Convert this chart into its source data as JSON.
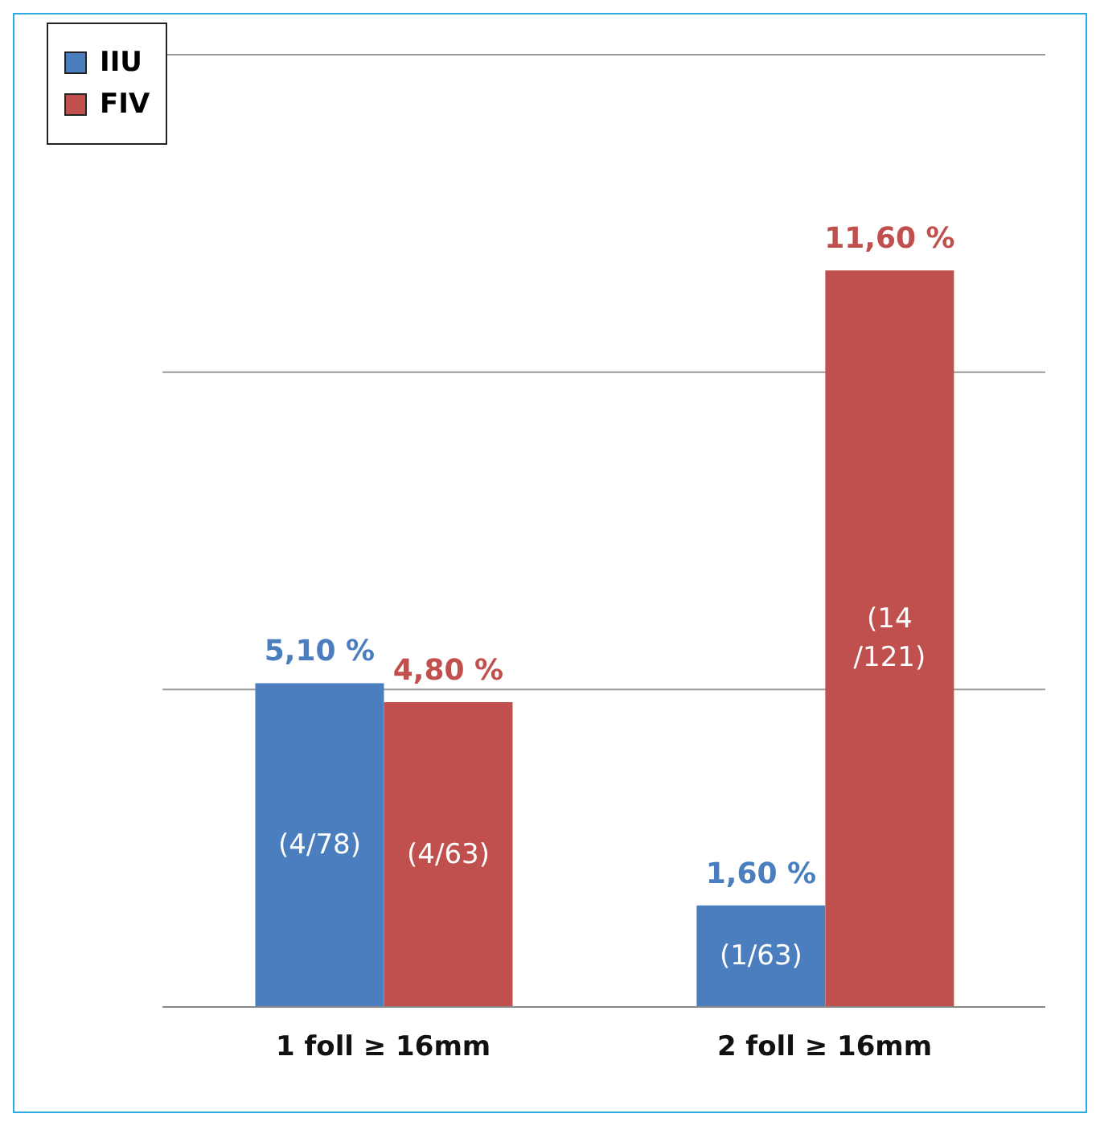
{
  "chart_data": {
    "type": "bar",
    "categories": [
      "1 foll ≥ 16mm",
      "2 foll ≥ 16mm"
    ],
    "series": [
      {
        "name": "IIU",
        "color": "#4a7ebf",
        "values": [
          5.1,
          1.6
        ],
        "value_labels": [
          "5,10 %",
          "1,60 %"
        ]
      },
      {
        "name": "FIV",
        "color": "#c0504d",
        "values": [
          4.8,
          11.6
        ],
        "value_labels": [
          "4,80 %",
          "11,60 %"
        ]
      }
    ],
    "ylim": [
      0,
      15
    ],
    "yticks": [
      {
        "value": 5,
        "label": null
      },
      {
        "value": 10,
        "label": null
      },
      {
        "value": 15,
        "label": null
      }
    ],
    "tick_labels": "x",
    "grid": "y",
    "legend": "top left",
    "annotations": [
      {
        "text": "(4/78)",
        "x": "1 foll ≥ 16mm",
        "y": 2.55
      },
      {
        "text": "(4/63)",
        "x": "1 foll ≥ 16mm",
        "y": 2.4
      },
      {
        "text": "(1/63)",
        "x": "2 foll ≥ 16mm",
        "y": 0.8
      },
      {
        "text": "(14\n/121)",
        "x": "2 foll ≥ 16mm",
        "y": 5.8
      }
    ]
  }
}
